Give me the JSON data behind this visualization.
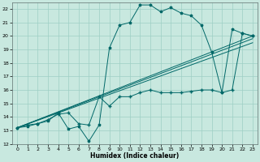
{
  "xlabel": "Humidex (Indice chaleur)",
  "xlim": [
    -0.5,
    23.5
  ],
  "ylim": [
    12,
    22.5
  ],
  "yticks": [
    12,
    13,
    14,
    15,
    16,
    17,
    18,
    19,
    20,
    21,
    22
  ],
  "xticks": [
    0,
    1,
    2,
    3,
    4,
    5,
    6,
    7,
    8,
    9,
    10,
    11,
    12,
    13,
    14,
    15,
    16,
    17,
    18,
    19,
    20,
    21,
    22,
    23
  ],
  "bg_color": "#c8e8df",
  "grid_color": "#9ecfc4",
  "line_color": "#006868",
  "series1_x": [
    0,
    1,
    2,
    3,
    4,
    5,
    6,
    7,
    8,
    9,
    10,
    11,
    12,
    13,
    14,
    15,
    16,
    17,
    18,
    19,
    20,
    21,
    22,
    23
  ],
  "series1_y": [
    13.2,
    13.3,
    13.5,
    13.7,
    14.3,
    13.1,
    13.3,
    12.2,
    13.4,
    19.1,
    20.8,
    21.0,
    22.3,
    22.3,
    21.8,
    22.1,
    21.7,
    21.5,
    20.8,
    18.8,
    15.8,
    20.5,
    20.2,
    20.0
  ],
  "series2_x": [
    0,
    1,
    2,
    3,
    4,
    5,
    6,
    7,
    8,
    9,
    10,
    11,
    12,
    13,
    14,
    15,
    16,
    17,
    18,
    19,
    20,
    21,
    22,
    23
  ],
  "series2_y": [
    13.2,
    13.4,
    13.5,
    13.8,
    14.2,
    14.3,
    13.5,
    13.4,
    15.5,
    14.8,
    15.5,
    15.5,
    15.8,
    16.0,
    15.8,
    15.8,
    15.8,
    15.9,
    16.0,
    16.0,
    15.8,
    16.0,
    20.2,
    20.0
  ],
  "trend1_x": [
    0,
    23
  ],
  "trend1_y": [
    13.2,
    20.0
  ],
  "trend2_x": [
    0,
    23
  ],
  "trend2_y": [
    13.2,
    19.5
  ],
  "trend3_x": [
    0,
    23
  ],
  "trend3_y": [
    13.2,
    19.8
  ]
}
